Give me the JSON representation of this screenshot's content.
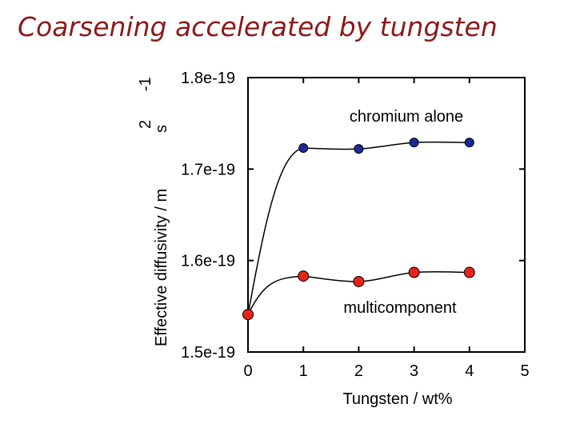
{
  "chart_data": {
    "type": "line",
    "title": "Coarsening accelerated by tungsten",
    "xlabel": "Tungsten / wt%",
    "ylabel": "Effective diffusivity / m",
    "ylabel_unit_power_1": "2",
    "ylabel_unit_s": "s",
    "ylabel_unit_power_2": "-1",
    "xlim": [
      0,
      5
    ],
    "ylim": [
      1.5e-19,
      1.8e-19
    ],
    "x_ticks": [
      "0",
      "1",
      "2",
      "3",
      "4",
      "5"
    ],
    "y_ticks": [
      "1.5e-19",
      "1.6e-19",
      "1.7e-19",
      "1.8e-19"
    ],
    "y_tick_values": [
      1.5e-19,
      1.6e-19,
      1.7e-19,
      1.8e-19
    ],
    "grid": false,
    "series": [
      {
        "name": "chromium alone",
        "color": "#1a2a9a",
        "x": [
          1,
          2,
          3,
          4
        ],
        "y": [
          1.723e-19,
          1.722e-19,
          1.729e-19,
          1.729e-19
        ]
      },
      {
        "name": "multicomponent",
        "color": "#e8231a",
        "x": [
          0,
          1,
          2,
          3,
          4
        ],
        "y": [
          1.541e-19,
          1.583e-19,
          1.577e-19,
          1.587e-19,
          1.587e-19
        ]
      }
    ]
  }
}
